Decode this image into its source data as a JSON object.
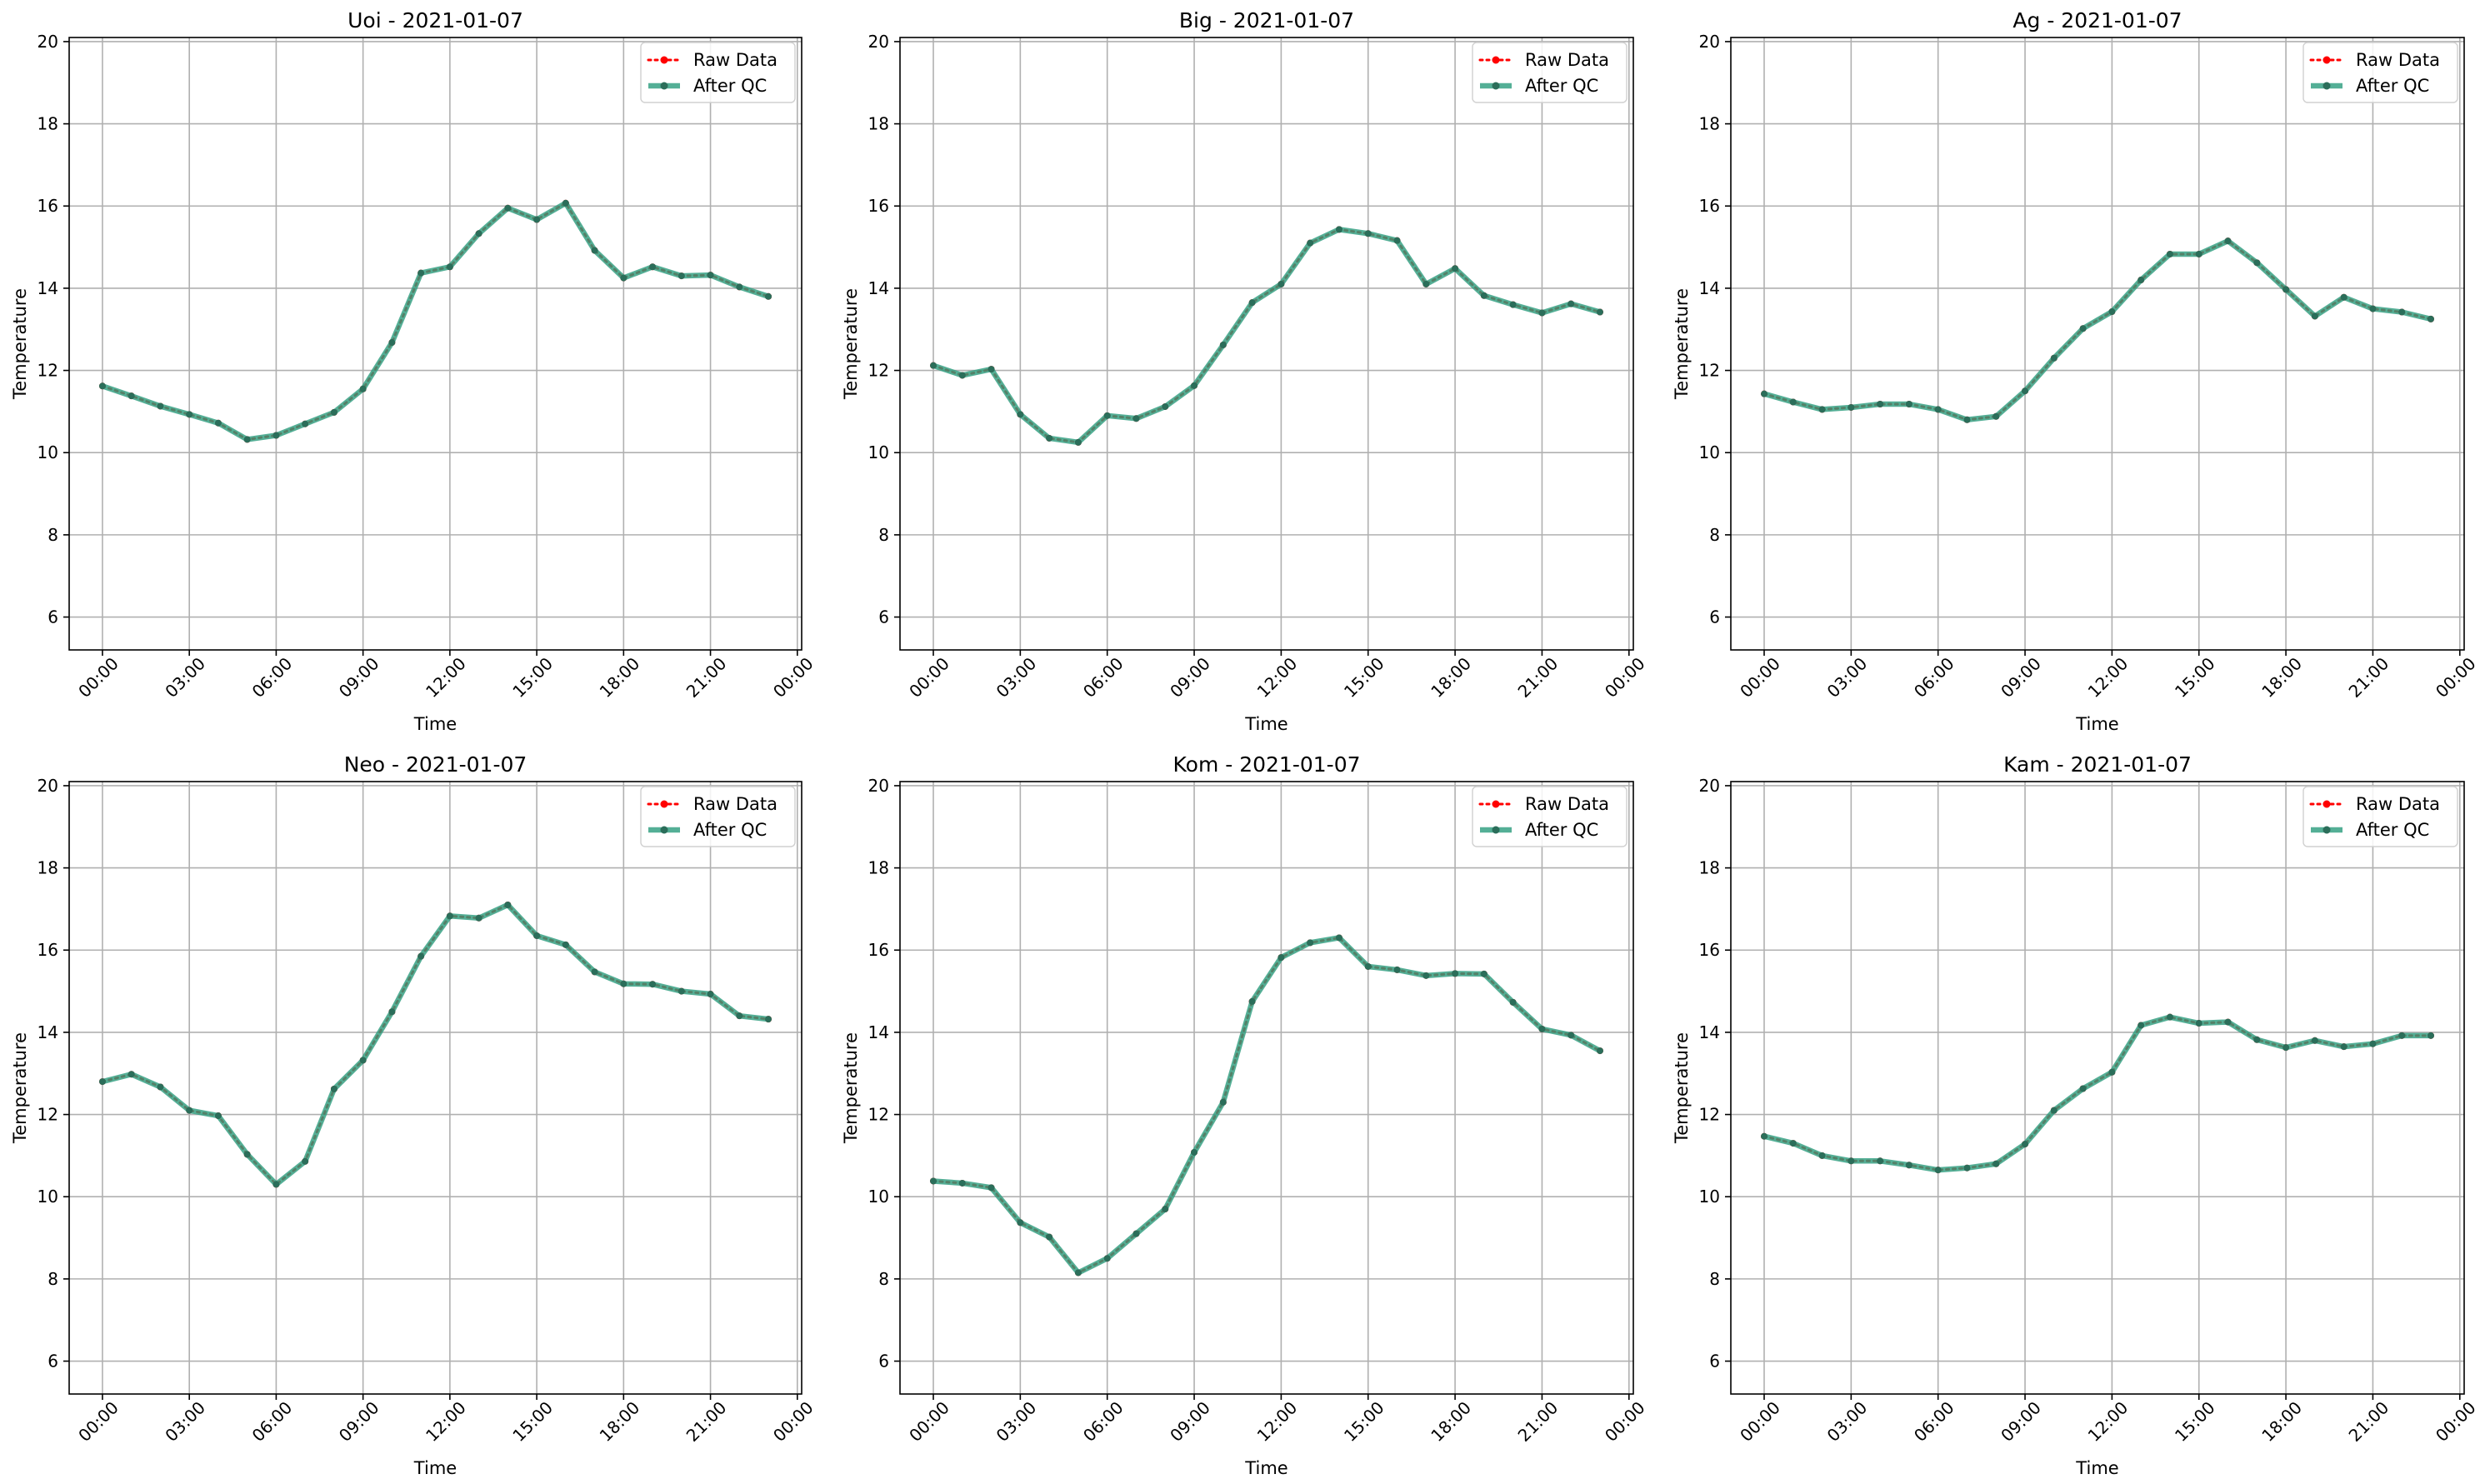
{
  "figure": {
    "colors": {
      "raw": "#ff0000",
      "qc": "#2e9e7f",
      "qc_marker": "#2b6e5a",
      "grid": "#b0b0b0",
      "axes": "#000000"
    }
  },
  "chart_data": [
    {
      "type": "line",
      "title": "Uoi - 2021-01-07",
      "xlabel": "Time",
      "ylabel": "Temperature",
      "x_ticks": [
        "00:00",
        "03:00",
        "06:00",
        "09:00",
        "12:00",
        "15:00",
        "18:00",
        "21:00",
        "00:00"
      ],
      "y_ticks": [
        "6",
        "8",
        "10",
        "12",
        "14",
        "16",
        "18",
        "20"
      ],
      "xlim_hours": [
        -1.15,
        24.15
      ],
      "ylim": [
        5.2,
        20.1
      ],
      "grid": true,
      "legend_position": "top-right",
      "x_hours": [
        0,
        1,
        2,
        3,
        4,
        5,
        6,
        7,
        8,
        9,
        10,
        11,
        12,
        13,
        14,
        15,
        16,
        17,
        18,
        19,
        20,
        21,
        22,
        23
      ],
      "series": [
        {
          "name": "Raw Data",
          "style": "dotted",
          "values": [
            11.62,
            11.38,
            11.13,
            10.93,
            10.72,
            10.32,
            10.42,
            10.7,
            10.98,
            11.55,
            12.68,
            14.37,
            14.52,
            15.33,
            15.95,
            15.67,
            16.07,
            14.92,
            14.25,
            14.52,
            14.3,
            14.32,
            14.03,
            13.8
          ]
        },
        {
          "name": "After QC",
          "style": "solid",
          "values": [
            11.62,
            11.38,
            11.13,
            10.93,
            10.72,
            10.32,
            10.42,
            10.7,
            10.98,
            11.55,
            12.68,
            14.37,
            14.52,
            15.33,
            15.95,
            15.67,
            16.07,
            14.92,
            14.25,
            14.52,
            14.3,
            14.32,
            14.03,
            13.8
          ]
        }
      ]
    },
    {
      "type": "line",
      "title": "Big - 2021-01-07",
      "xlabel": "Time",
      "ylabel": "Temperature",
      "x_ticks": [
        "00:00",
        "03:00",
        "06:00",
        "09:00",
        "12:00",
        "15:00",
        "18:00",
        "21:00",
        "00:00"
      ],
      "y_ticks": [
        "6",
        "8",
        "10",
        "12",
        "14",
        "16",
        "18",
        "20"
      ],
      "xlim_hours": [
        -1.15,
        24.15
      ],
      "ylim": [
        5.2,
        20.1
      ],
      "grid": true,
      "legend_position": "top-right",
      "x_hours": [
        0,
        1,
        2,
        3,
        4,
        5,
        6,
        7,
        8,
        9,
        10,
        11,
        12,
        13,
        14,
        15,
        16,
        17,
        18,
        19,
        20,
        21,
        22,
        23
      ],
      "series": [
        {
          "name": "Raw Data",
          "style": "dotted",
          "values": [
            12.12,
            11.88,
            12.03,
            10.93,
            10.35,
            10.25,
            10.9,
            10.83,
            11.12,
            11.63,
            12.62,
            13.65,
            14.1,
            15.1,
            15.43,
            15.33,
            15.16,
            14.1,
            14.48,
            13.82,
            13.6,
            13.4,
            13.62,
            13.42
          ]
        },
        {
          "name": "After QC",
          "style": "solid",
          "values": [
            12.12,
            11.88,
            12.03,
            10.93,
            10.35,
            10.25,
            10.9,
            10.83,
            11.12,
            11.63,
            12.62,
            13.65,
            14.1,
            15.1,
            15.43,
            15.33,
            15.16,
            14.1,
            14.48,
            13.82,
            13.6,
            13.4,
            13.62,
            13.42
          ]
        }
      ]
    },
    {
      "type": "line",
      "title": "Ag - 2021-01-07",
      "xlabel": "Time",
      "ylabel": "Temperature",
      "x_ticks": [
        "00:00",
        "03:00",
        "06:00",
        "09:00",
        "12:00",
        "15:00",
        "18:00",
        "21:00",
        "00:00"
      ],
      "y_ticks": [
        "6",
        "8",
        "10",
        "12",
        "14",
        "16",
        "18",
        "20"
      ],
      "xlim_hours": [
        -1.15,
        24.15
      ],
      "ylim": [
        5.2,
        20.1
      ],
      "grid": true,
      "legend_position": "top-right",
      "x_hours": [
        0,
        1,
        2,
        3,
        4,
        5,
        6,
        7,
        8,
        9,
        10,
        11,
        12,
        13,
        14,
        15,
        16,
        17,
        18,
        19,
        20,
        21,
        22,
        23
      ],
      "series": [
        {
          "name": "Raw Data",
          "style": "dotted",
          "values": [
            11.43,
            11.23,
            11.05,
            11.1,
            11.18,
            11.18,
            11.05,
            10.8,
            10.88,
            11.5,
            12.3,
            13.02,
            13.43,
            14.2,
            14.83,
            14.83,
            15.15,
            14.62,
            13.97,
            13.32,
            13.78,
            13.5,
            13.42,
            13.25
          ]
        },
        {
          "name": "After QC",
          "style": "solid",
          "values": [
            11.43,
            11.23,
            11.05,
            11.1,
            11.18,
            11.18,
            11.05,
            10.8,
            10.88,
            11.5,
            12.3,
            13.02,
            13.43,
            14.2,
            14.83,
            14.83,
            15.15,
            14.62,
            13.97,
            13.32,
            13.78,
            13.5,
            13.42,
            13.25
          ]
        }
      ]
    },
    {
      "type": "line",
      "title": "Neo - 2021-01-07",
      "xlabel": "Time",
      "ylabel": "Temperature",
      "x_ticks": [
        "00:00",
        "03:00",
        "06:00",
        "09:00",
        "12:00",
        "15:00",
        "18:00",
        "21:00",
        "00:00"
      ],
      "y_ticks": [
        "6",
        "8",
        "10",
        "12",
        "14",
        "16",
        "18",
        "20"
      ],
      "xlim_hours": [
        -1.15,
        24.15
      ],
      "ylim": [
        5.2,
        20.1
      ],
      "grid": true,
      "legend_position": "top-right",
      "x_hours": [
        0,
        1,
        2,
        3,
        4,
        5,
        6,
        7,
        8,
        9,
        10,
        11,
        12,
        13,
        14,
        15,
        16,
        17,
        18,
        19,
        20,
        21,
        22,
        23
      ],
      "series": [
        {
          "name": "Raw Data",
          "style": "dotted",
          "values": [
            12.8,
            12.98,
            12.67,
            12.1,
            11.97,
            11.03,
            10.3,
            10.86,
            12.62,
            13.32,
            14.5,
            15.85,
            16.83,
            16.78,
            17.1,
            16.35,
            16.13,
            15.47,
            15.18,
            15.17,
            15.0,
            14.93,
            14.4,
            14.32
          ]
        },
        {
          "name": "After QC",
          "style": "solid",
          "values": [
            12.8,
            12.98,
            12.67,
            12.1,
            11.97,
            11.03,
            10.3,
            10.86,
            12.62,
            13.32,
            14.5,
            15.85,
            16.83,
            16.78,
            17.1,
            16.35,
            16.13,
            15.47,
            15.18,
            15.17,
            15.0,
            14.93,
            14.4,
            14.32
          ]
        }
      ]
    },
    {
      "type": "line",
      "title": "Kom - 2021-01-07",
      "xlabel": "Time",
      "ylabel": "Temperature",
      "x_ticks": [
        "00:00",
        "03:00",
        "06:00",
        "09:00",
        "12:00",
        "15:00",
        "18:00",
        "21:00",
        "00:00"
      ],
      "y_ticks": [
        "6",
        "8",
        "10",
        "12",
        "14",
        "16",
        "18",
        "20"
      ],
      "xlim_hours": [
        -1.15,
        24.15
      ],
      "ylim": [
        5.2,
        20.1
      ],
      "grid": true,
      "legend_position": "top-right",
      "x_hours": [
        0,
        1,
        2,
        3,
        4,
        5,
        6,
        7,
        8,
        9,
        10,
        11,
        12,
        13,
        14,
        15,
        16,
        17,
        18,
        19,
        20,
        21,
        22,
        23
      ],
      "series": [
        {
          "name": "Raw Data",
          "style": "dotted",
          "values": [
            10.38,
            10.33,
            10.22,
            9.37,
            9.02,
            8.15,
            8.5,
            9.1,
            9.7,
            11.08,
            12.3,
            14.75,
            15.82,
            16.18,
            16.3,
            15.6,
            15.52,
            15.38,
            15.43,
            15.42,
            14.73,
            14.08,
            13.93,
            13.55
          ]
        },
        {
          "name": "After QC",
          "style": "solid",
          "values": [
            10.38,
            10.33,
            10.22,
            9.37,
            9.02,
            8.15,
            8.5,
            9.1,
            9.7,
            11.08,
            12.3,
            14.75,
            15.82,
            16.18,
            16.3,
            15.6,
            15.52,
            15.38,
            15.43,
            15.42,
            14.73,
            14.08,
            13.93,
            13.55
          ]
        }
      ]
    },
    {
      "type": "line",
      "title": "Kam - 2021-01-07",
      "xlabel": "Time",
      "ylabel": "Temperature",
      "x_ticks": [
        "00:00",
        "03:00",
        "06:00",
        "09:00",
        "12:00",
        "15:00",
        "18:00",
        "21:00",
        "00:00"
      ],
      "y_ticks": [
        "6",
        "8",
        "10",
        "12",
        "14",
        "16",
        "18",
        "20"
      ],
      "xlim_hours": [
        -1.15,
        24.15
      ],
      "ylim": [
        5.2,
        20.1
      ],
      "grid": true,
      "legend_position": "top-right",
      "x_hours": [
        0,
        1,
        2,
        3,
        4,
        5,
        6,
        7,
        8,
        9,
        10,
        11,
        12,
        13,
        14,
        15,
        16,
        17,
        18,
        19,
        20,
        21,
        22,
        23
      ],
      "series": [
        {
          "name": "Raw Data",
          "style": "dotted",
          "values": [
            11.47,
            11.3,
            11.0,
            10.87,
            10.87,
            10.77,
            10.65,
            10.7,
            10.8,
            11.28,
            12.1,
            12.63,
            13.03,
            14.17,
            14.37,
            14.22,
            14.25,
            13.82,
            13.63,
            13.8,
            13.65,
            13.72,
            13.92,
            13.92
          ]
        },
        {
          "name": "After QC",
          "style": "solid",
          "values": [
            11.47,
            11.3,
            11.0,
            10.87,
            10.87,
            10.77,
            10.65,
            10.7,
            10.8,
            11.28,
            12.1,
            12.63,
            13.03,
            14.17,
            14.37,
            14.22,
            14.25,
            13.82,
            13.63,
            13.8,
            13.65,
            13.72,
            13.92,
            13.92
          ]
        }
      ]
    }
  ]
}
